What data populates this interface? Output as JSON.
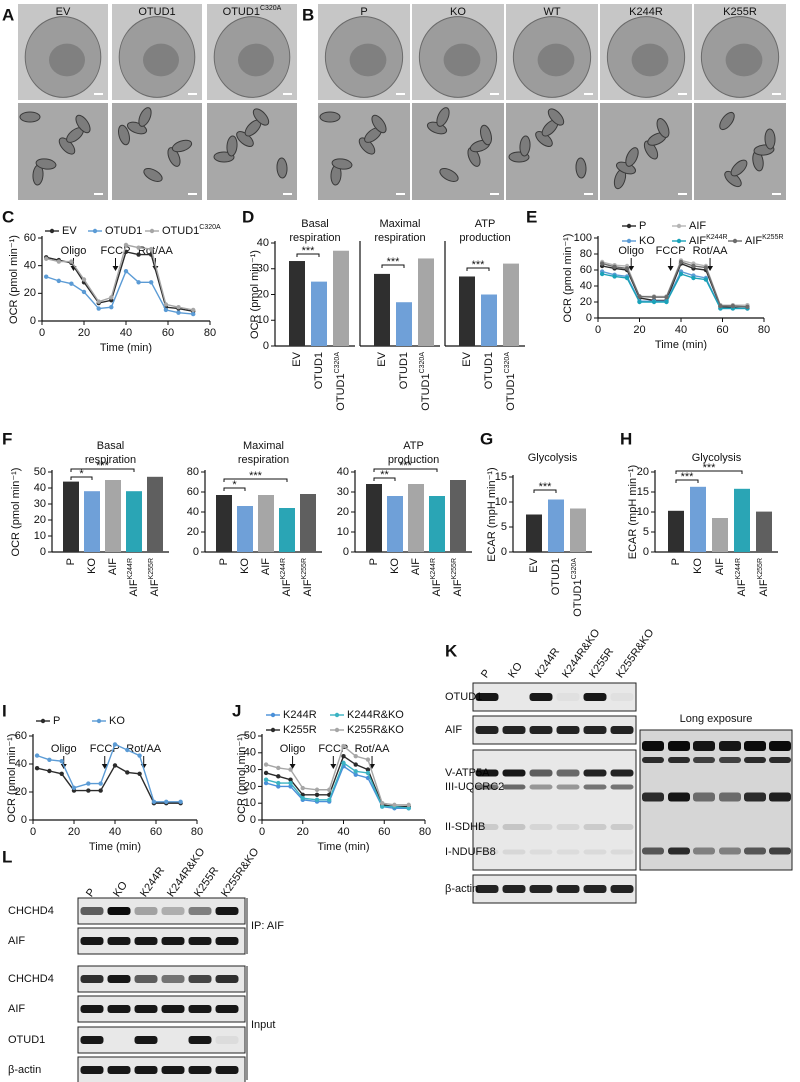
{
  "panel_labels": [
    "A",
    "B",
    "C",
    "D",
    "E",
    "F",
    "G",
    "H",
    "I",
    "J",
    "K",
    "L"
  ],
  "micrograph_a": {
    "labels": [
      "EV",
      "OTUD1",
      "OTUD1"
    ],
    "superscripts": [
      null,
      null,
      "C320A"
    ]
  },
  "micrograph_b": {
    "labels": [
      "P",
      "KO",
      "WT",
      "K244R",
      "K255R"
    ]
  },
  "chart_data": [
    {
      "type": "line",
      "xlabel": "Time (min)",
      "ylabel": "OCR (pmol min⁻¹)",
      "x": [
        2,
        8,
        14,
        20,
        27,
        33,
        40,
        46,
        52,
        59,
        65,
        72
      ],
      "xlim": [
        0,
        80
      ],
      "xticks": [
        0,
        20,
        40,
        60,
        80
      ],
      "ylim": [
        0,
        60
      ],
      "yticks": [
        0,
        20,
        40,
        60
      ],
      "annotations": [
        {
          "text": "Oligo",
          "x": 15
        },
        {
          "text": "FCCP",
          "x": 35
        },
        {
          "text": "Rot/AA",
          "x": 54
        }
      ],
      "series": [
        {
          "name": "EV",
          "color": "#2b2b2b",
          "values": [
            46,
            44,
            42,
            28,
            13,
            15,
            50,
            48,
            48,
            10,
            9,
            7
          ]
        },
        {
          "name": "OTUD1",
          "color": "#5b9bd5",
          "values": [
            32,
            29,
            27,
            21,
            9,
            10,
            36,
            28,
            28,
            8,
            6,
            5
          ]
        },
        {
          "name": "OTUD1",
          "superscript": "C320A",
          "color": "#a6a6a6",
          "values": [
            45,
            43,
            43,
            30,
            14,
            17,
            55,
            53,
            52,
            12,
            10,
            8
          ]
        }
      ]
    },
    {
      "type": "bar",
      "title_lines": [
        "Basal",
        "respiration"
      ],
      "ylabel": "OCR (pmol min⁻¹)",
      "ylim": [
        0,
        40
      ],
      "yticks": [
        0,
        10,
        20,
        30,
        40
      ],
      "categories": [
        "EV",
        "OTUD1",
        "OTUD1"
      ],
      "category_superscripts": [
        null,
        null,
        "C320A"
      ],
      "values": [
        33,
        25,
        37
      ],
      "colors": [
        "#2f2f2f",
        "#6fa0d8",
        "#a6a6a6"
      ],
      "significance": [
        {
          "pair": [
            0,
            1
          ],
          "label": "***"
        }
      ]
    },
    {
      "type": "bar",
      "title_lines": [
        "Maximal",
        "respiration"
      ],
      "ylim": [
        0,
        40
      ],
      "categories": [
        "EV",
        "OTUD1",
        "OTUD1"
      ],
      "category_superscripts": [
        null,
        null,
        "C320A"
      ],
      "values": [
        28,
        17,
        34
      ],
      "colors": [
        "#2f2f2f",
        "#6fa0d8",
        "#a6a6a6"
      ],
      "significance": [
        {
          "pair": [
            0,
            1
          ],
          "label": "***"
        }
      ]
    },
    {
      "type": "bar",
      "title_lines": [
        "ATP",
        "production"
      ],
      "ylim": [
        0,
        40
      ],
      "categories": [
        "EV",
        "OTUD1",
        "OTUD1"
      ],
      "category_superscripts": [
        null,
        null,
        "C320A"
      ],
      "values": [
        27,
        20,
        32
      ],
      "colors": [
        "#2f2f2f",
        "#6fa0d8",
        "#a6a6a6"
      ],
      "significance": [
        {
          "pair": [
            0,
            1
          ],
          "label": "***"
        }
      ]
    },
    {
      "type": "line",
      "xlabel": "Time (min)",
      "ylabel": "OCR (pmol min⁻¹)",
      "x": [
        2,
        8,
        14,
        20,
        27,
        33,
        40,
        46,
        52,
        59,
        65,
        72
      ],
      "xlim": [
        0,
        80
      ],
      "xticks": [
        0,
        20,
        40,
        60,
        80
      ],
      "ylim": [
        0,
        100
      ],
      "yticks": [
        0,
        20,
        40,
        60,
        80,
        100
      ],
      "annotations": [
        {
          "text": "Oligo",
          "x": 16
        },
        {
          "text": "FCCP",
          "x": 35
        },
        {
          "text": "Rot/AA",
          "x": 54
        }
      ],
      "series": [
        {
          "name": "P",
          "color": "#2b2b2b",
          "values": [
            65,
            62,
            60,
            25,
            22,
            22,
            68,
            62,
            60,
            14,
            13,
            12
          ]
        },
        {
          "name": "KO",
          "color": "#5b9bd5",
          "values": [
            58,
            54,
            52,
            21,
            21,
            21,
            58,
            53,
            50,
            12,
            12,
            12
          ]
        },
        {
          "name": "AIF",
          "color": "#b5b5b5",
          "values": [
            70,
            66,
            65,
            27,
            27,
            27,
            72,
            68,
            65,
            16,
            16,
            16
          ]
        },
        {
          "name": "AIF",
          "superscript": "K244R",
          "color": "#1aa2b8",
          "values": [
            55,
            52,
            50,
            20,
            20,
            20,
            55,
            50,
            48,
            12,
            12,
            12
          ]
        },
        {
          "name": "AIF",
          "superscript": "K255R",
          "color": "#6b6b6b",
          "values": [
            68,
            64,
            62,
            27,
            26,
            26,
            70,
            65,
            63,
            15,
            15,
            14
          ]
        }
      ]
    },
    {
      "type": "bar",
      "title_lines": [
        "Basal",
        "respiration"
      ],
      "ylabel": "OCR (pmol min⁻¹)",
      "ylim": [
        0,
        50
      ],
      "yticks": [
        0,
        10,
        20,
        30,
        40,
        50
      ],
      "categories": [
        "P",
        "KO",
        "AIF",
        "AIF",
        "AIF"
      ],
      "category_superscripts": [
        null,
        null,
        null,
        "K244R",
        "K255R"
      ],
      "values": [
        44,
        38,
        45,
        38,
        47
      ],
      "colors": [
        "#2f2f2f",
        "#6fa0d8",
        "#a6a6a6",
        "#2aa5b5",
        "#5f5f5f"
      ],
      "significance": [
        {
          "pair": [
            0,
            1
          ],
          "label": "*"
        },
        {
          "pair": [
            0,
            3
          ],
          "label": "***"
        }
      ]
    },
    {
      "type": "bar",
      "title_lines": [
        "Maximal",
        "respiration"
      ],
      "ylim": [
        0,
        80
      ],
      "yticks": [
        0,
        20,
        40,
        60,
        80
      ],
      "categories": [
        "P",
        "KO",
        "AIF",
        "AIF",
        "AIF"
      ],
      "category_superscripts": [
        null,
        null,
        null,
        "K244R",
        "K255R"
      ],
      "values": [
        57,
        46,
        57,
        44,
        58
      ],
      "colors": [
        "#2f2f2f",
        "#6fa0d8",
        "#a6a6a6",
        "#2aa5b5",
        "#5f5f5f"
      ],
      "significance": [
        {
          "pair": [
            0,
            1
          ],
          "label": "*"
        },
        {
          "pair": [
            0,
            3
          ],
          "label": "***"
        }
      ]
    },
    {
      "type": "bar",
      "title_lines": [
        "ATP",
        "production"
      ],
      "ylim": [
        0,
        40
      ],
      "yticks": [
        0,
        10,
        20,
        30,
        40
      ],
      "categories": [
        "P",
        "KO",
        "AIF",
        "AIF",
        "AIF"
      ],
      "category_superscripts": [
        null,
        null,
        null,
        "K244R",
        "K255R"
      ],
      "values": [
        34,
        28,
        34,
        28,
        36
      ],
      "colors": [
        "#2f2f2f",
        "#6fa0d8",
        "#a6a6a6",
        "#2aa5b5",
        "#5f5f5f"
      ],
      "significance": [
        {
          "pair": [
            0,
            1
          ],
          "label": "**"
        },
        {
          "pair": [
            0,
            3
          ],
          "label": "***"
        }
      ]
    },
    {
      "type": "bar",
      "title_lines": [
        "Glycolysis"
      ],
      "ylabel": "ECAR (mpH min⁻¹)",
      "ylim": [
        0,
        15
      ],
      "yticks": [
        0,
        5,
        10,
        15
      ],
      "categories": [
        "EV",
        "OTUD1",
        "OTUD1"
      ],
      "category_superscripts": [
        null,
        null,
        "C320A"
      ],
      "values": [
        7.5,
        10.5,
        8.7
      ],
      "colors": [
        "#2f2f2f",
        "#6fa0d8",
        "#a6a6a6"
      ],
      "significance": [
        {
          "pair": [
            0,
            1
          ],
          "label": "***"
        }
      ]
    },
    {
      "type": "bar",
      "title_lines": [
        "Glycolysis"
      ],
      "ylabel": "ECAR (mpH min⁻¹)",
      "ylim": [
        0,
        20
      ],
      "yticks": [
        0,
        5,
        10,
        15,
        20
      ],
      "categories": [
        "P",
        "KO",
        "AIF",
        "AIF",
        "AIF"
      ],
      "category_superscripts": [
        null,
        null,
        null,
        "K244R",
        "K255R"
      ],
      "values": [
        10.3,
        16.3,
        8.5,
        15.8,
        10.1
      ],
      "colors": [
        "#2f2f2f",
        "#6fa0d8",
        "#a6a6a6",
        "#2aa5b5",
        "#5f5f5f"
      ],
      "significance": [
        {
          "pair": [
            0,
            1
          ],
          "label": "***"
        },
        {
          "pair": [
            0,
            3
          ],
          "label": "***"
        }
      ]
    },
    {
      "type": "line",
      "xlabel": "Time (min)",
      "ylabel": "OCR (pmol min⁻¹)",
      "x": [
        2,
        8,
        14,
        20,
        27,
        33,
        40,
        46,
        52,
        59,
        65,
        72
      ],
      "xlim": [
        0,
        80
      ],
      "xticks": [
        0,
        20,
        40,
        60,
        80
      ],
      "ylim": [
        0,
        60
      ],
      "yticks": [
        0,
        20,
        40,
        60
      ],
      "annotations": [
        {
          "text": "Oligo",
          "x": 15
        },
        {
          "text": "FCCP",
          "x": 35
        },
        {
          "text": "Rot/AA",
          "x": 54
        }
      ],
      "series": [
        {
          "name": "P",
          "color": "#2b2b2b",
          "values": [
            37,
            35,
            33,
            21,
            21,
            21,
            39,
            34,
            33,
            12,
            12,
            12
          ]
        },
        {
          "name": "KO",
          "color": "#5b9bd5",
          "values": [
            46,
            43,
            42,
            23,
            26,
            26,
            54,
            50,
            46,
            13,
            13,
            13
          ]
        }
      ]
    },
    {
      "type": "line",
      "xlabel": "Time (min)",
      "ylabel": "OCR (pmol min⁻¹)",
      "x": [
        2,
        8,
        14,
        20,
        27,
        33,
        40,
        46,
        52,
        59,
        65,
        72
      ],
      "xlim": [
        0,
        80
      ],
      "xticks": [
        0,
        20,
        40,
        60,
        80
      ],
      "ylim": [
        0,
        50
      ],
      "yticks": [
        0,
        10,
        20,
        30,
        40,
        50
      ],
      "annotations": [
        {
          "text": "Oligo",
          "x": 15
        },
        {
          "text": "FCCP",
          "x": 35
        },
        {
          "text": "Rot/AA",
          "x": 54
        }
      ],
      "series": [
        {
          "name": "K244R",
          "color": "#4a90d9",
          "values": [
            22,
            20,
            20,
            12,
            11,
            11,
            32,
            27,
            25,
            8,
            7,
            7
          ]
        },
        {
          "name": "K255R",
          "color": "#2b2b2b",
          "values": [
            28,
            26,
            24,
            15,
            15,
            15,
            38,
            33,
            30,
            9,
            8,
            8
          ]
        },
        {
          "name": "K244R&KO",
          "color": "#3bb3c3",
          "values": [
            24,
            22,
            22,
            13,
            12,
            12,
            34,
            29,
            28,
            8,
            8,
            7
          ]
        },
        {
          "name": "K255R&KO",
          "color": "#a6a6a6",
          "values": [
            33,
            31,
            30,
            19,
            18,
            18,
            44,
            38,
            36,
            10,
            9,
            9
          ]
        }
      ]
    }
  ],
  "blot_k": {
    "lanes": [
      "P",
      "KO",
      "K244R",
      "K244R&KO",
      "K255R",
      "K255R&KO"
    ],
    "rows": [
      "OTUD1",
      "AIF",
      "V-ATP5A",
      "III-UQCRC2",
      "II-SDHB",
      "I-NDUFB8",
      "β-actin"
    ],
    "note": "Long exposure"
  },
  "blot_l": {
    "lanes": [
      "P",
      "KO",
      "K244R",
      "K244R&KO",
      "K255R",
      "K255R&KO"
    ],
    "rows": [
      "CHCHD4",
      "AIF",
      "CHCHD4",
      "AIF",
      "OTUD1",
      "β-actin"
    ],
    "groups": [
      "IP: AIF",
      "Input"
    ]
  }
}
